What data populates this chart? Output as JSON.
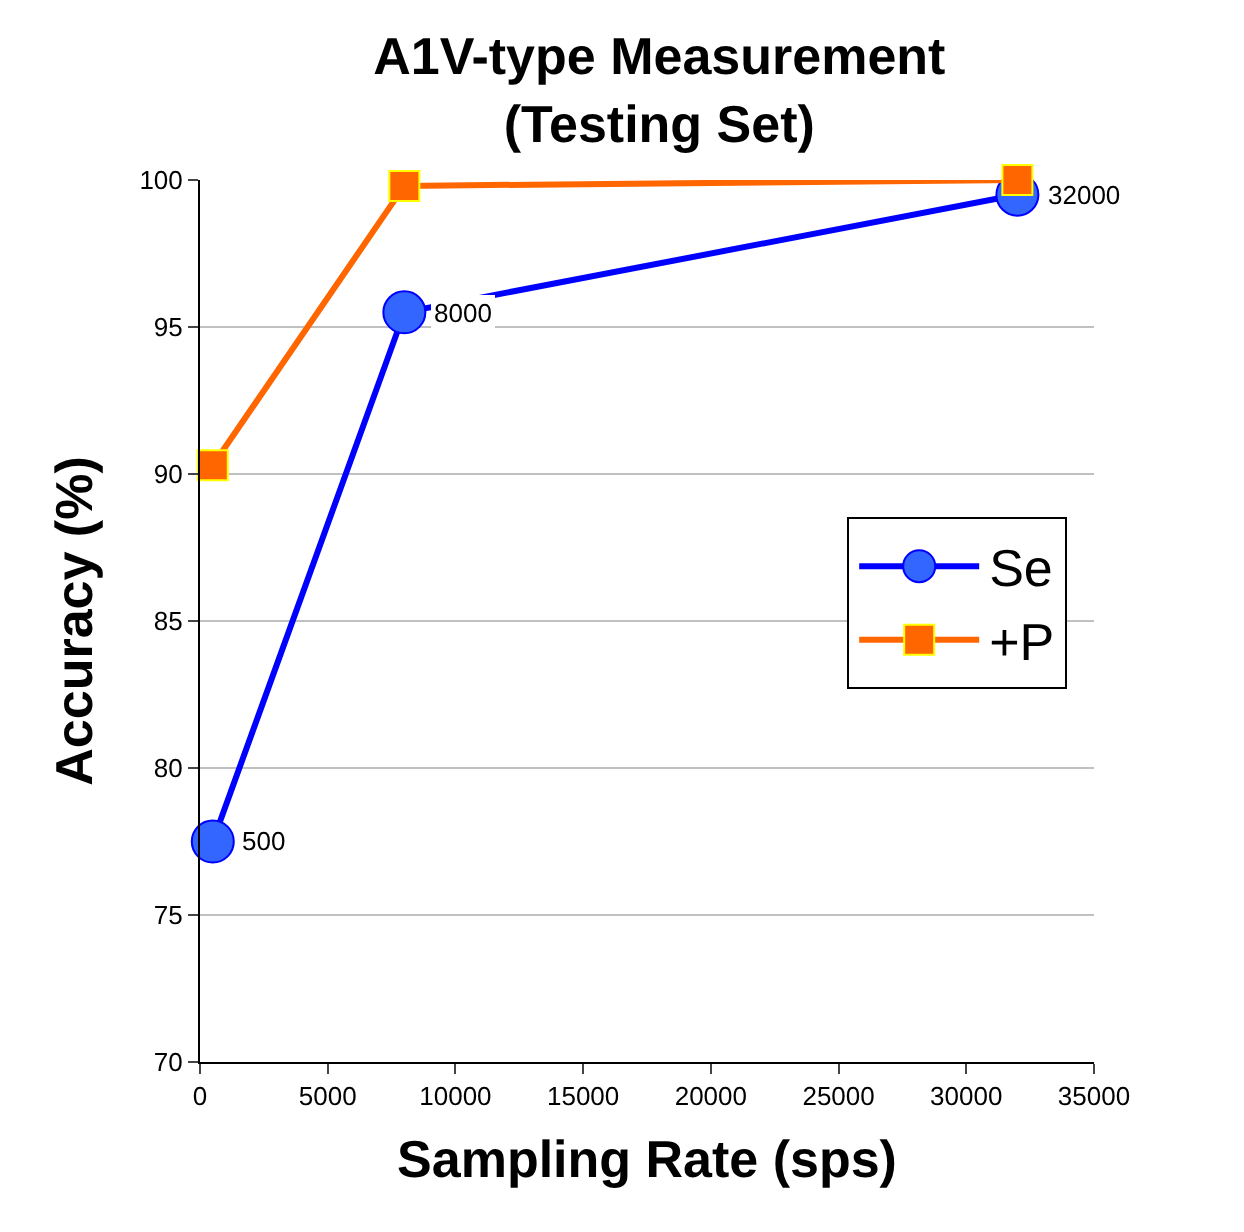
{
  "chart_data": {
    "type": "line",
    "title": "A1V-type Measurement\n(Testing Set)",
    "xlabel": "Sampling Rate (sps)",
    "ylabel": "Accuracy (%)",
    "x": [
      500,
      8000,
      32000
    ],
    "series": [
      {
        "name": "Se",
        "color": "#0000ff",
        "values": [
          77.5,
          95.5,
          99.5
        ],
        "marker": "circle"
      },
      {
        "name": "+P",
        "color": "#ff6600",
        "values": [
          90.3,
          99.8,
          100
        ],
        "marker": "square"
      }
    ],
    "annotations": [
      {
        "text": "500",
        "x": 500,
        "y": 77.5
      },
      {
        "text": "8000",
        "x": 8000,
        "y": 95.5
      },
      {
        "text": "32000",
        "x": 32000,
        "y": 99.5
      }
    ],
    "xlim": [
      0,
      35000
    ],
    "xticks": [
      0,
      5000,
      10000,
      15000,
      20000,
      25000,
      30000,
      35000
    ],
    "ylim": [
      70,
      100
    ],
    "yticks": [
      70,
      75,
      80,
      85,
      90,
      95,
      100
    ],
    "grid": "y",
    "legend": "right",
    "line_style": "solid"
  }
}
